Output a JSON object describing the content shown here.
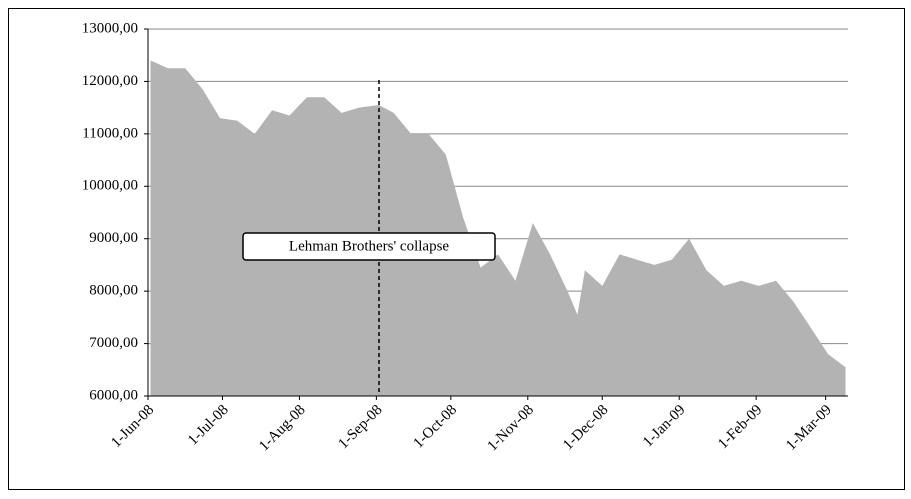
{
  "chart_data": {
    "type": "area",
    "x": [
      "2008-06-02",
      "2008-06-09",
      "2008-06-16",
      "2008-06-23",
      "2008-06-30",
      "2008-07-07",
      "2008-07-14",
      "2008-07-21",
      "2008-07-28",
      "2008-08-04",
      "2008-08-11",
      "2008-08-18",
      "2008-08-25",
      "2008-09-02",
      "2008-09-08",
      "2008-09-15",
      "2008-09-22",
      "2008-09-29",
      "2008-10-06",
      "2008-10-13",
      "2008-10-20",
      "2008-10-27",
      "2008-11-03",
      "2008-11-10",
      "2008-11-17",
      "2008-11-21",
      "2008-11-24",
      "2008-12-01",
      "2008-12-08",
      "2008-12-15",
      "2008-12-22",
      "2008-12-29",
      "2009-01-05",
      "2009-01-12",
      "2009-01-19",
      "2009-01-26",
      "2009-02-02",
      "2009-02-09",
      "2009-02-16",
      "2009-02-23",
      "2009-03-02",
      "2009-03-09"
    ],
    "values": [
      12400,
      12250,
      12250,
      11850,
      11300,
      11250,
      11000,
      11450,
      11350,
      11700,
      11700,
      11400,
      11500,
      11550,
      11400,
      11000,
      11000,
      10600,
      9400,
      8450,
      8700,
      8200,
      9300,
      8700,
      8000,
      7550,
      8400,
      8100,
      8700,
      8600,
      8500,
      8600,
      9000,
      8400,
      8100,
      8200,
      8100,
      8200,
      7800,
      7300,
      6800,
      6550
    ],
    "color": "#b3b3b3",
    "xlim": [
      "2008-06-01",
      "2009-03-10"
    ],
    "xticks": [
      {
        "value": "2008-06-01",
        "label": "1-Jun-08"
      },
      {
        "value": "2008-07-01",
        "label": "1-Jul-08"
      },
      {
        "value": "2008-08-01",
        "label": "1-Aug-08"
      },
      {
        "value": "2008-09-01",
        "label": "1-Sep-08"
      },
      {
        "value": "2008-10-01",
        "label": "1-Oct-08"
      },
      {
        "value": "2008-11-01",
        "label": "1-Nov-08"
      },
      {
        "value": "2008-12-01",
        "label": "1-Dec-08"
      },
      {
        "value": "2009-01-01",
        "label": "1-Jan-09"
      },
      {
        "value": "2009-02-01",
        "label": "1-Feb-09"
      },
      {
        "value": "2009-03-01",
        "label": "1-Mar-09"
      }
    ],
    "ylim": [
      6000,
      13000
    ],
    "yticks": [
      {
        "value": 6000,
        "label": "6000,00"
      },
      {
        "value": 7000,
        "label": "7000,00"
      },
      {
        "value": 8000,
        "label": "8000,00"
      },
      {
        "value": 9000,
        "label": "9000,00"
      },
      {
        "value": 10000,
        "label": "10000,00"
      },
      {
        "value": 11000,
        "label": "11000,00"
      },
      {
        "value": 12000,
        "label": "12000,00"
      },
      {
        "value": 13000,
        "label": "13000,00"
      }
    ],
    "grid": true,
    "annotation": "Lehman Brothers' collapse"
  }
}
